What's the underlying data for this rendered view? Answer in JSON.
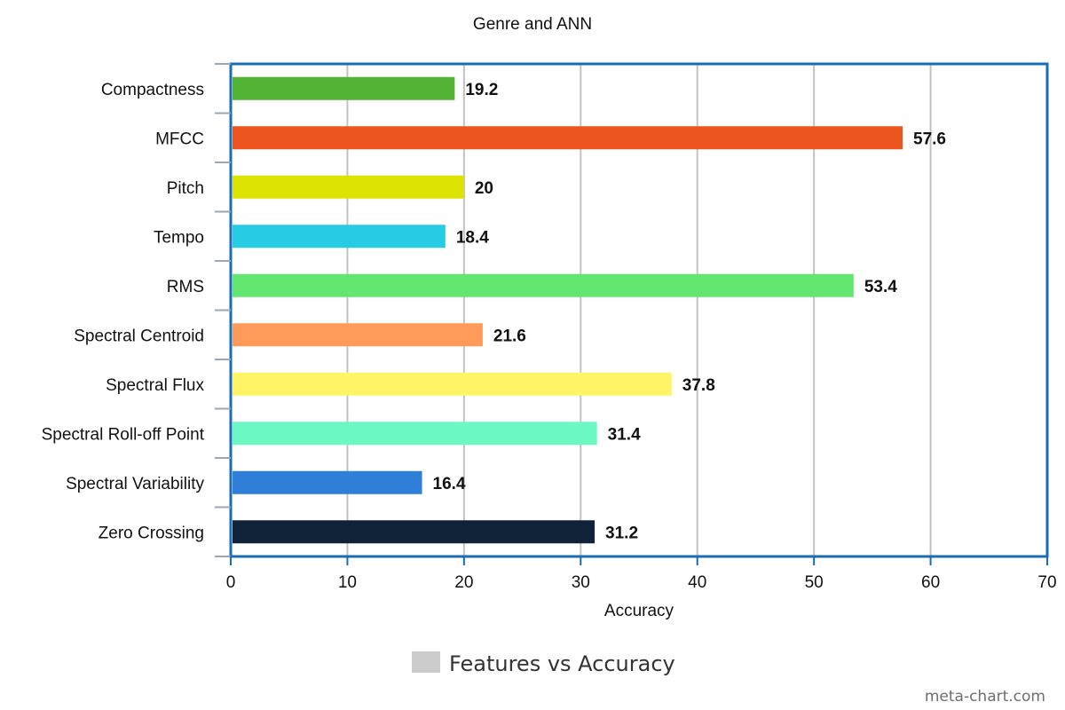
{
  "chart_data": {
    "type": "bar",
    "orientation": "horizontal",
    "title": "Genre and ANN",
    "xlabel": "Accuracy",
    "ylabel": "",
    "xlim": [
      0,
      70
    ],
    "x_ticks": [
      0,
      10,
      20,
      30,
      40,
      50,
      60,
      70
    ],
    "grid": true,
    "legend_position": "bottom-center",
    "categories": [
      "Compactness",
      "MFCC",
      "Pitch",
      "Tempo",
      "RMS",
      "Spectral Centroid",
      "Spectral Flux",
      "Spectral Roll-off Point",
      "Spectral Variability",
      "Zero Crossing"
    ],
    "series": [
      {
        "name": "Features vs Accuracy",
        "values": [
          19.2,
          57.6,
          20,
          18.4,
          53.4,
          21.6,
          37.8,
          31.4,
          16.4,
          31.2
        ],
        "value_labels": [
          "19.2",
          "57.6",
          "20",
          "18.4",
          "53.4",
          "21.6",
          "37.8",
          "31.4",
          "16.4",
          "31.2"
        ]
      }
    ],
    "bar_colors": [
      "#52b335",
      "#ec561e",
      "#dde300",
      "#27cce4",
      "#63e66f",
      "#ff9a5a",
      "#fff566",
      "#6cf8c2",
      "#2f7fd9",
      "#0f2238"
    ],
    "legend_swatch_color": "#cccccc",
    "frame_color": "#1a6db3",
    "grid_color": "#c2c2c2"
  },
  "watermark": "meta-chart.com"
}
